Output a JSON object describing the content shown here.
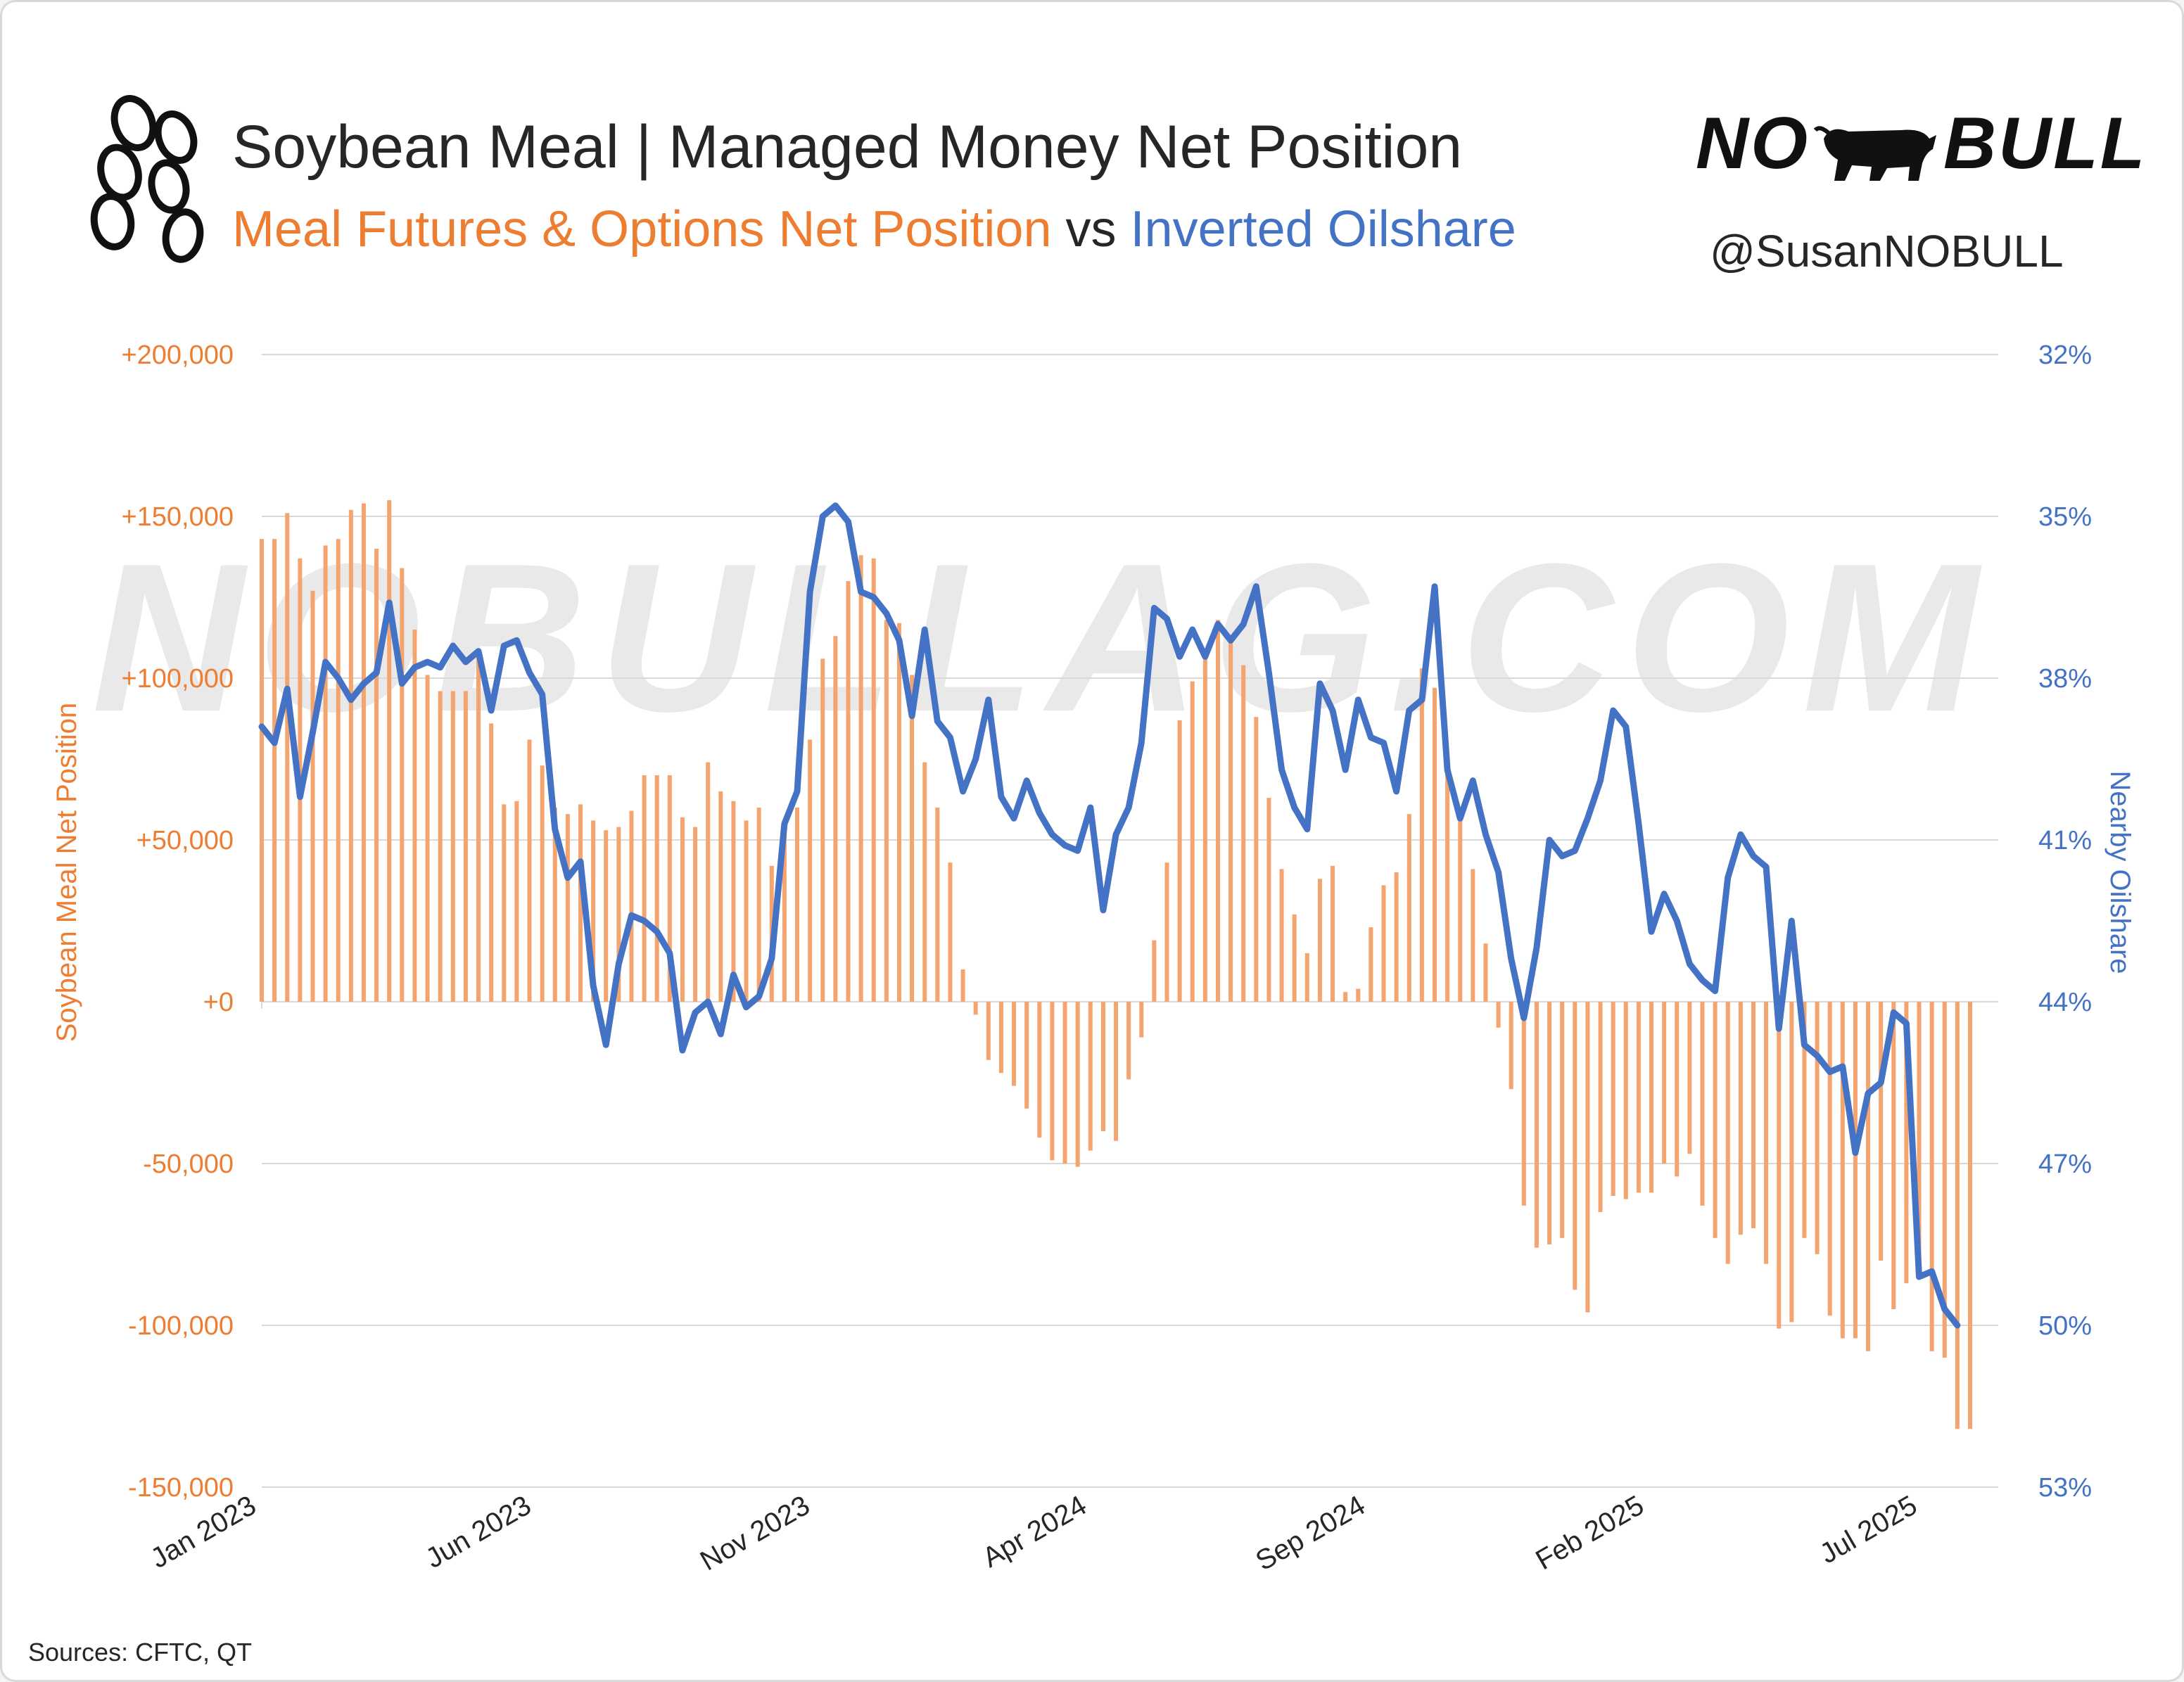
{
  "header": {
    "title": "Soybean Meal | Managed Money Net Position",
    "subtitle_part1": "Meal Futures & Options Net Position",
    "subtitle_part2": " vs ",
    "subtitle_part3": "Inverted Oilshare",
    "brand_left": "NO",
    "brand_right": "BULL",
    "handle": "@SusanNOBULL",
    "watermark": "NOBULLAG.COM"
  },
  "footer": {
    "sources": "Sources: CFTC, QT"
  },
  "colors": {
    "bar": "#f4a46e",
    "line": "#4472c4",
    "left_axis": "#ed7d31",
    "right_axis": "#4472c4",
    "grid": "#d9d9d9"
  },
  "icons": {
    "logo": "soybean-pod-icon",
    "brand": "bull-icon"
  },
  "chart_data": {
    "type": "bar+line",
    "xlabel": "",
    "ylabel": "Soybean Meal Net Position",
    "y2label": "Nearby Oilshare",
    "ylim": [
      -150000,
      200000
    ],
    "y2lim": [
      53,
      32
    ],
    "y2_inverted": true,
    "yticks": [
      200000,
      150000,
      100000,
      50000,
      0,
      -50000,
      -100000,
      -150000
    ],
    "ytick_labels": [
      "+200,000",
      "+150,000",
      "+100,000",
      "+50,000",
      "+0",
      "-50,000",
      "-100,000",
      "-150,000"
    ],
    "y2ticks": [
      32,
      35,
      38,
      41,
      44,
      47,
      50,
      53
    ],
    "y2tick_labels": [
      "32%",
      "35%",
      "38%",
      "41%",
      "44%",
      "47%",
      "50%",
      "53%"
    ],
    "xtick_labels": [
      "Jan 2023",
      "Jun 2023",
      "Nov 2023",
      "Apr 2024",
      "Sep 2024",
      "Feb 2025",
      "Jul 2025"
    ],
    "x_start": "2023-01-03",
    "x_end": "2025-07-29",
    "grid": true,
    "series": [
      {
        "name": "Meal Futures & Options Net Position",
        "type": "bar",
        "axis": "left",
        "values": [
          143000,
          143000,
          151000,
          137000,
          127000,
          141000,
          143000,
          152000,
          154000,
          140000,
          155000,
          134000,
          115000,
          101000,
          96000,
          96000,
          96000,
          108000,
          86000,
          61000,
          62000,
          81000,
          73000,
          60000,
          58000,
          61000,
          56000,
          53000,
          54000,
          59000,
          70000,
          70000,
          70000,
          57000,
          54000,
          74000,
          65000,
          62000,
          56000,
          60000,
          42000,
          54000,
          60000,
          81000,
          106000,
          113000,
          130000,
          138000,
          137000,
          118000,
          117000,
          101000,
          74000,
          60000,
          43000,
          10000,
          -4000,
          -18000,
          -22000,
          -26000,
          -33000,
          -42000,
          -49000,
          -50000,
          -51000,
          -46000,
          -40000,
          -43000,
          -24000,
          -11000,
          19000,
          43000,
          87000,
          99000,
          107000,
          118000,
          112000,
          104000,
          88000,
          63000,
          41000,
          27000,
          15000,
          38000,
          42000,
          3000,
          4000,
          23000,
          36000,
          40000,
          58000,
          103000,
          97000,
          77000,
          58000,
          41000,
          18000,
          -8000,
          -27000,
          -63000,
          -76000,
          -75000,
          -73000,
          -89000,
          -96000,
          -65000,
          -60000,
          -61000,
          -59000,
          -59000,
          -50000,
          -54000,
          -47000,
          -63000,
          -73000,
          -81000,
          -72000,
          -70000,
          -81000,
          -101000,
          -99000,
          -73000,
          -78000,
          -97000,
          -104000,
          -104000,
          -108000,
          -80000,
          -95000,
          -87000,
          -83000,
          -108000,
          -110000,
          -132000,
          -132000
        ]
      },
      {
        "name": "Inverted Oilshare",
        "type": "line",
        "axis": "right",
        "values": [
          38.9,
          39.2,
          38.2,
          40.2,
          39.0,
          37.7,
          38.0,
          38.4,
          38.1,
          37.9,
          36.6,
          38.1,
          37.8,
          37.7,
          37.8,
          37.4,
          37.7,
          37.5,
          38.6,
          37.4,
          37.3,
          37.9,
          38.3,
          40.8,
          41.7,
          41.4,
          43.7,
          44.8,
          43.3,
          42.4,
          42.5,
          42.7,
          43.1,
          44.9,
          44.2,
          44.0,
          44.6,
          43.5,
          44.1,
          43.9,
          43.2,
          40.7,
          40.1,
          36.4,
          35.0,
          34.8,
          35.1,
          36.4,
          36.5,
          36.8,
          37.3,
          38.7,
          37.1,
          38.8,
          39.1,
          40.1,
          39.5,
          38.4,
          40.2,
          40.6,
          39.9,
          40.5,
          40.9,
          41.1,
          41.2,
          40.4,
          42.3,
          40.9,
          40.4,
          39.2,
          36.7,
          36.9,
          37.6,
          37.1,
          37.6,
          37.0,
          37.3,
          37.0,
          36.3,
          37.9,
          39.7,
          40.4,
          40.8,
          38.1,
          38.6,
          39.7,
          38.4,
          39.1,
          39.2,
          40.1,
          38.6,
          38.4,
          36.3,
          39.7,
          40.6,
          39.9,
          40.9,
          41.6,
          43.2,
          44.3,
          43.0,
          41.0,
          41.3,
          41.2,
          40.6,
          39.9,
          38.6,
          38.9,
          40.7,
          42.7,
          42.0,
          42.5,
          43.3,
          43.6,
          43.8,
          41.7,
          40.9,
          41.3,
          41.5,
          44.5,
          42.5,
          44.8,
          45.0,
          45.3,
          45.2,
          46.8,
          45.7,
          45.5,
          44.2,
          44.4,
          49.1,
          49.0,
          49.7,
          50.0
        ]
      }
    ]
  }
}
